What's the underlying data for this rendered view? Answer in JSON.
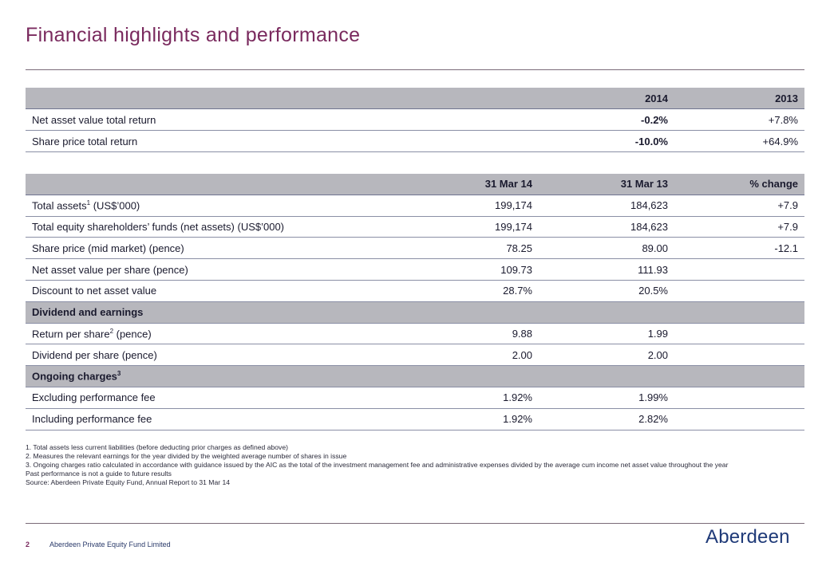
{
  "title": "Financial highlights and performance",
  "table1": {
    "headers": [
      "",
      "2014",
      "2013"
    ],
    "rows": [
      {
        "label": "Net asset value total return",
        "v2014": "-0.2%",
        "v2013": "+7.8%"
      },
      {
        "label": "Share price total return",
        "v2014": "-10.0%",
        "v2013": "+64.9%"
      }
    ]
  },
  "table2": {
    "headers": [
      "",
      "31 Mar 14",
      "31 Mar 13",
      "% change"
    ],
    "rows": [
      {
        "label": "Total assets",
        "sup": "1",
        "label_suffix": " (US$’000)",
        "a": "199,174",
        "b": "184,623",
        "c": "+7.9"
      },
      {
        "label": "Total equity shareholders’ funds (net assets) (US$’000)",
        "a": "199,174",
        "b": "184,623",
        "c": "+7.9"
      },
      {
        "label": "Share price (mid market) (pence)",
        "a": "78.25",
        "b": "89.00",
        "c": "-12.1"
      },
      {
        "label": "Net asset value per share (pence)",
        "a": "109.73",
        "b": "111.93",
        "c": ""
      },
      {
        "label": "Discount to net asset value",
        "a": "28.7%",
        "b": "20.5%",
        "c": ""
      }
    ],
    "section_dividend": "Dividend and earnings",
    "dividend_rows": [
      {
        "label": "Return per share",
        "sup": "2",
        "label_suffix": " (pence)",
        "a": "9.88",
        "b": "1.99",
        "c": ""
      },
      {
        "label": "Dividend per share (pence)",
        "a": "2.00",
        "b": "2.00",
        "c": ""
      }
    ],
    "section_charges": "Ongoing charges",
    "section_charges_sup": "3",
    "charges_rows": [
      {
        "label": "Excluding performance fee",
        "a": "1.92%",
        "b": "1.99%",
        "c": ""
      },
      {
        "label": "Including performance fee",
        "a": "1.92%",
        "b": "2.82%",
        "c": ""
      }
    ]
  },
  "notes": [
    "1. Total assets less current liabilities (before deducting prior charges as defined above)",
    "2. Measures the relevant earnings for the year divided by the weighted average number of shares in issue",
    "3. Ongoing charges ratio calculated in accordance with guidance issued by the AIC as the total of the investment management fee and administrative expenses divided by the average cum income net asset value throughout the year",
    "Past performance is not a guide to future results",
    "Source: Aberdeen Private Equity Fund, Annual Report to 31 Mar 14"
  ],
  "footer": {
    "page_number": "2",
    "company": "Aberdeen Private Equity Fund Limited",
    "logo_text": "Aberdeen"
  }
}
